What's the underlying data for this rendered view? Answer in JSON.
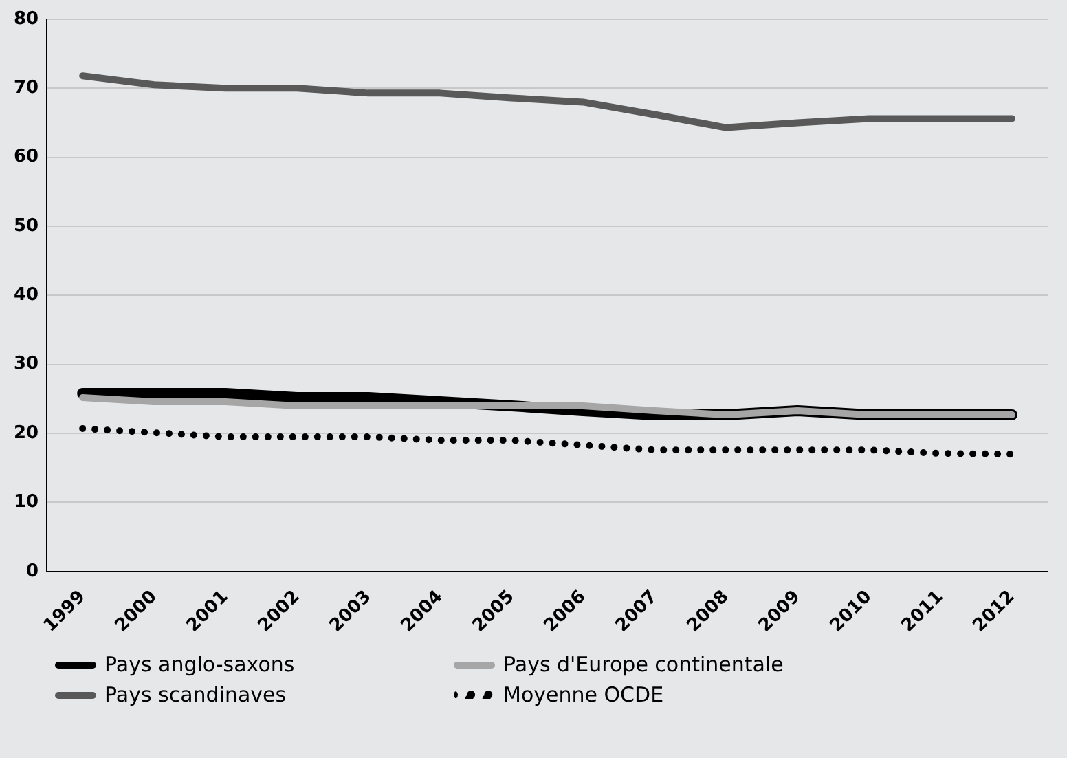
{
  "chart_data": {
    "type": "line",
    "categories": [
      "1999",
      "2000",
      "2001",
      "2002",
      "2003",
      "2004",
      "2005",
      "2006",
      "2007",
      "2008",
      "2009",
      "2010",
      "2011",
      "2012"
    ],
    "series": [
      {
        "name": "Pays anglo-saxons",
        "color": "#000000",
        "values": [
          25.8,
          25.8,
          25.8,
          25.2,
          25.2,
          24.6,
          24,
          23.3,
          22.7,
          22.7,
          23.3,
          22.7,
          22.7,
          22.7
        ]
      },
      {
        "name": "Pays d'Europe continentale",
        "color": "#a6a6a6",
        "values": [
          25.2,
          24.6,
          24.6,
          24,
          24,
          24,
          24,
          24,
          23.3,
          22.7,
          23.3,
          22.7,
          22.7,
          22.7
        ]
      },
      {
        "name": "Pays scandinaves",
        "color": "#595959",
        "values": [
          71.8,
          70.5,
          70,
          70,
          69.3,
          69.3,
          68.6,
          68,
          66.2,
          64.3,
          65,
          65.6,
          65.6,
          65.6
        ]
      },
      {
        "name": "Moyenne OCDE",
        "color": "#000000",
        "line_style": "dotted",
        "values": [
          20.7,
          20.1,
          19.5,
          19.5,
          19.5,
          19,
          19,
          18.3,
          17.6,
          17.6,
          17.6,
          17.6,
          17.1,
          17
        ]
      }
    ],
    "ylim": [
      0,
      80
    ],
    "yticks": [
      0,
      10,
      20,
      30,
      40,
      50,
      60,
      70,
      80
    ],
    "grid": "y",
    "legend": "bottom",
    "marker": "none"
  }
}
